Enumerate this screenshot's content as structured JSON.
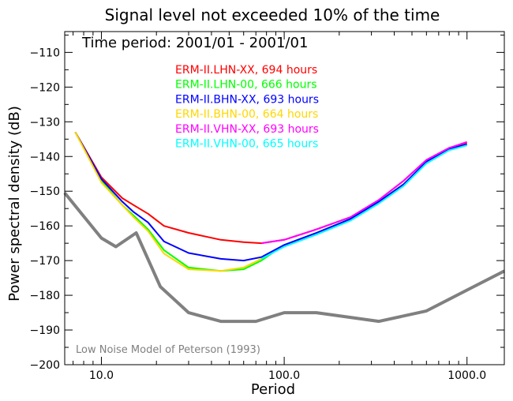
{
  "chart_data": {
    "type": "line",
    "title": "Signal level not exceeded 10% of the time",
    "subtitle": "Time period: 2001/01 - 2001/01",
    "xlabel": "Period",
    "ylabel": "Power spectral density (dB)",
    "xscale": "log",
    "xlim": [
      6.3,
      1600
    ],
    "ylim": [
      -200,
      -104
    ],
    "x_ticks": [
      10,
      100,
      1000
    ],
    "x_tick_labels": [
      "10.0",
      "100.0",
      "1000.0"
    ],
    "y_ticks": [
      -200,
      -190,
      -180,
      -170,
      -160,
      -150,
      -140,
      -130,
      -120,
      -110
    ],
    "y_tick_labels": [
      "-200",
      "-190",
      "-180",
      "-170",
      "-160",
      "-150",
      "-140",
      "-130",
      "-120",
      "-110"
    ],
    "legend_position": "top-center",
    "series": [
      {
        "name": "ERM-II.LHN-XX, 694 hours",
        "color": "#ff0000",
        "x": [
          7.2,
          10,
          13,
          15,
          18,
          22,
          30,
          45,
          60,
          75,
          100,
          150,
          230,
          330,
          450,
          600,
          800,
          1000
        ],
        "y": [
          -133,
          -146,
          -152,
          -154,
          -156.5,
          -160,
          -162,
          -164,
          -164.7,
          -165,
          -164,
          -161,
          -157.5,
          -152.5,
          -147,
          -141,
          -137.5,
          -136
        ]
      },
      {
        "name": "ERM-II.LHN-00, 666 hours",
        "color": "#00ff00",
        "x": [
          7.2,
          10,
          13,
          15,
          18,
          22,
          30,
          45,
          60,
          75,
          100,
          150,
          230,
          330,
          450,
          600,
          800,
          1000
        ],
        "y": [
          -133,
          -147,
          -154,
          -157,
          -161,
          -167,
          -172,
          -173,
          -172.5,
          -170,
          -165.5,
          -162,
          -158,
          -153,
          -148,
          -142,
          -138,
          -136.5
        ]
      },
      {
        "name": "ERM-II.BHN-XX, 693 hours",
        "color": "#0000ff",
        "x": [
          7.2,
          10,
          13,
          15,
          18,
          22,
          30,
          45,
          60,
          75,
          100,
          150,
          230,
          330,
          450,
          600,
          800,
          1000
        ],
        "y": [
          -133,
          -146.5,
          -153,
          -156,
          -159,
          -164.5,
          -167.8,
          -169.5,
          -170,
          -169,
          -165.5,
          -162,
          -158,
          -153,
          -148,
          -141.5,
          -137.8,
          -136.5
        ]
      },
      {
        "name": "ERM-II.BHN-00, 664 hours",
        "color": "#ffd700",
        "x": [
          7.2,
          10,
          13,
          15,
          18,
          22,
          30,
          45,
          60,
          75
        ],
        "y": [
          -133,
          -147.5,
          -154,
          -157.5,
          -161.5,
          -168,
          -172.5,
          -173,
          -172,
          -169.5
        ]
      },
      {
        "name": "ERM-II.VHN-XX, 693 hours",
        "color": "#ff00ff",
        "x": [
          75,
          100,
          150,
          230,
          330,
          450,
          600,
          800,
          1000
        ],
        "y": [
          -165,
          -164,
          -161,
          -157.5,
          -152.5,
          -147,
          -141,
          -137.5,
          -135.8
        ]
      },
      {
        "name": "ERM-II.VHN-00, 665 hours",
        "color": "#00ffff",
        "x": [
          75,
          100,
          150,
          230,
          330,
          450,
          600,
          800,
          1000
        ],
        "y": [
          -169.5,
          -166,
          -162.5,
          -158.5,
          -153.5,
          -148.5,
          -142,
          -138.2,
          -136.8
        ]
      }
    ],
    "reference": {
      "name": "Low Noise Model of Peterson (1993)",
      "color": "#808080",
      "x": [
        6.3,
        10,
        12,
        15.5,
        21,
        30,
        45,
        70,
        100,
        150,
        330,
        600,
        1000,
        1600
      ],
      "y": [
        -150.5,
        -163.5,
        -166,
        -162,
        -177.5,
        -185,
        -187.5,
        -187.5,
        -185,
        -185,
        -187.5,
        -184.5,
        -178.5,
        -173
      ]
    }
  }
}
